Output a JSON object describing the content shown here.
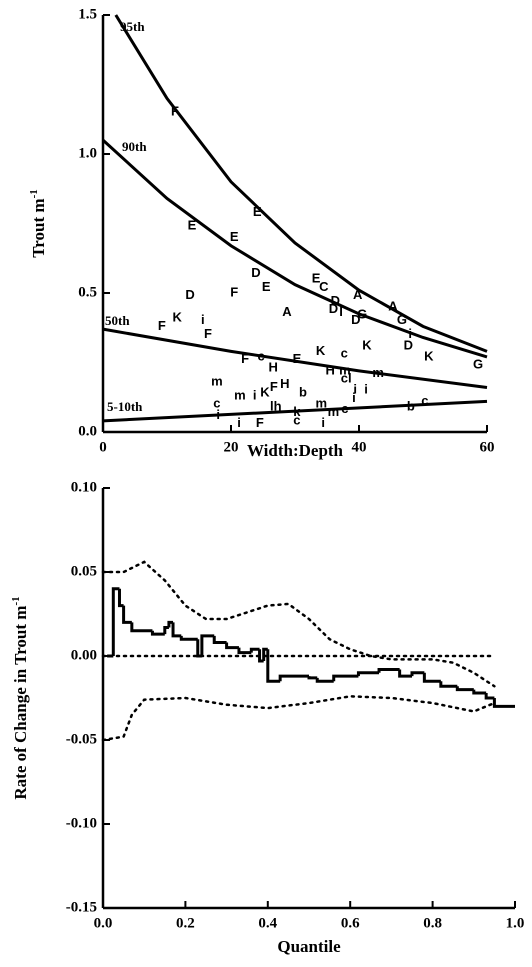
{
  "chart_data": [
    {
      "type": "scatter",
      "x_label": "Width:Depth",
      "y_label": "Trout  m",
      "y_label_sup": "-1",
      "xlim": [
        0,
        60
      ],
      "xticks": [
        0,
        20,
        40,
        60
      ],
      "ylim": [
        0,
        1.5
      ],
      "yticks": [
        {
          "value": 0,
          "label": "0.0"
        },
        {
          "value": 0.5,
          "label": "0.5"
        },
        {
          "value": 1,
          "label": "1.0"
        },
        {
          "value": 1.5,
          "label": "1.5"
        }
      ],
      "points": {
        "x": [
          11.25,
          24.1,
          13.9,
          20.5,
          23.9,
          20.5,
          25.5,
          13.6,
          11.6,
          9.2,
          15.6,
          16.4,
          28.75,
          33.3,
          34.5,
          36.3,
          36,
          37.2,
          40.5,
          39.5,
          39.8,
          45.3,
          46.7,
          48,
          47.7,
          58.6,
          41.25,
          34,
          37.7,
          22.2,
          24.7,
          26.6,
          30.3,
          35.5,
          37.8,
          43,
          38,
          39.4,
          41.1,
          50.9,
          17.8,
          17.8,
          18,
          21.4,
          23.7,
          25.3,
          28.4,
          26.7,
          31.25,
          27,
          34.1,
          30.3,
          30.3,
          36,
          37.8,
          39.2,
          24.5,
          21.25,
          48.1,
          50.3,
          34.4
        ],
        "y": [
          1.15,
          0.79,
          0.74,
          0.7,
          0.57,
          0.5,
          0.52,
          0.49,
          0.41,
          0.38,
          0.4,
          0.35,
          0.43,
          0.55,
          0.52,
          0.47,
          0.44,
          0.43,
          0.42,
          0.4,
          0.49,
          0.45,
          0.4,
          0.35,
          0.31,
          0.24,
          0.31,
          0.29,
          0.28,
          0.26,
          0.27,
          0.23,
          0.26,
          0.22,
          0.22,
          0.21,
          0.19,
          0.15,
          0.15,
          0.27,
          0.18,
          0.1,
          0.06,
          0.13,
          0.13,
          0.14,
          0.17,
          0.16,
          0.14,
          0.09,
          0.1,
          0.07,
          0.04,
          0.07,
          0.08,
          0.12,
          0.03,
          0.03,
          0.09,
          0.11,
          0.03
        ],
        "labels": [
          "F",
          "E",
          "E",
          "E",
          "D",
          "F",
          "E",
          "D",
          "K",
          "F",
          "i",
          "F",
          "A",
          "E",
          "C",
          "D",
          "D",
          "I",
          "G",
          "D",
          "A",
          "A",
          "G",
          "i",
          "D",
          "G",
          "K",
          "K",
          "c",
          "F",
          "c",
          "H",
          "E",
          "H",
          "m",
          "m",
          "cl",
          "i",
          "i",
          "K",
          "m",
          "c",
          "i",
          "m",
          "i",
          "K",
          "H",
          "F",
          "b",
          "lh",
          "m",
          "k",
          "c",
          "m",
          "c",
          "i",
          "F",
          "i",
          "b",
          "c",
          "i"
        ]
      },
      "series": [
        {
          "name": "95th",
          "color": "#000000",
          "x": [
            2,
            10,
            20,
            30,
            40,
            50,
            60
          ],
          "values": [
            1.5,
            1.2,
            0.9,
            0.68,
            0.51,
            0.38,
            0.29
          ]
        },
        {
          "name": "90th",
          "color": "#000000",
          "x": [
            0,
            10,
            20,
            30,
            40,
            50,
            60
          ],
          "values": [
            1.05,
            0.84,
            0.67,
            0.53,
            0.425,
            0.34,
            0.27
          ]
        },
        {
          "name": "50th",
          "color": "#000000",
          "x": [
            0,
            20,
            40,
            60
          ],
          "values": [
            0.37,
            0.29,
            0.22,
            0.16
          ]
        },
        {
          "name": "5-10th",
          "color": "#000000",
          "x": [
            0,
            60
          ],
          "values": [
            0.04,
            0.11
          ]
        }
      ]
    },
    {
      "type": "line",
      "x_label": "Quantile",
      "y_label": "Rate of Change in Trout m",
      "y_label_sup": "-1",
      "xlim": [
        0,
        1
      ],
      "xticks": [
        {
          "value": 0,
          "label": "0.0"
        },
        {
          "value": 0.2,
          "label": "0.2"
        },
        {
          "value": 0.4,
          "label": "0.4"
        },
        {
          "value": 0.6,
          "label": "0.6"
        },
        {
          "value": 0.8,
          "label": "0.8"
        },
        {
          "value": 1,
          "label": "1.0"
        }
      ],
      "ylim": [
        -0.15,
        0.1
      ],
      "yticks": [
        {
          "value": -0.15,
          "label": "-0.15"
        },
        {
          "value": -0.1,
          "label": "-0.10"
        },
        {
          "value": -0.05,
          "label": "-0.05"
        },
        {
          "value": 0,
          "label": "0.00"
        },
        {
          "value": 0.05,
          "label": "0.05"
        },
        {
          "value": 0.1,
          "label": "0.10"
        }
      ],
      "reference_line": {
        "y": 0,
        "x": [
          0,
          0.95
        ]
      },
      "series": [
        {
          "style": "step",
          "color": "#000000",
          "x": [
            0.01,
            0.025,
            0.04,
            0.05,
            0.07,
            0.12,
            0.15,
            0.16,
            0.17,
            0.19,
            0.23,
            0.24,
            0.27,
            0.3,
            0.33,
            0.36,
            0.38,
            0.39,
            0.4,
            0.43,
            0.5,
            0.52,
            0.56,
            0.62,
            0.67,
            0.72,
            0.75,
            0.78,
            0.82,
            0.86,
            0.9,
            0.93,
            0.95,
            1
          ],
          "values": [
            0,
            0.04,
            0.03,
            0.02,
            0.015,
            0.013,
            0.017,
            0.02,
            0.012,
            0.01,
            0,
            0.012,
            0.008,
            0.005,
            0.002,
            0.004,
            -0.003,
            0.004,
            -0.015,
            -0.012,
            -0.013,
            -0.015,
            -0.012,
            -0.01,
            -0.008,
            -0.012,
            -0.01,
            -0.015,
            -0.018,
            -0.02,
            -0.022,
            -0.025,
            -0.03,
            -0.03
          ]
        },
        {
          "style": "dotted",
          "color": "#000000",
          "x": [
            0,
            0.05,
            0.1,
            0.15,
            0.2,
            0.25,
            0.3,
            0.35,
            0.4,
            0.45,
            0.5,
            0.55,
            0.6,
            0.65,
            0.7,
            0.75,
            0.8,
            0.85,
            0.9,
            0.95
          ],
          "values": [
            0.05,
            0.05,
            0.056,
            0.045,
            0.03,
            0.022,
            0.022,
            0.026,
            0.03,
            0.031,
            0.022,
            0.01,
            0.004,
            0,
            -0.002,
            -0.002,
            -0.002,
            -0.004,
            -0.01,
            -0.018
          ]
        },
        {
          "style": "dotted",
          "color": "#000000",
          "x": [
            0,
            0.05,
            0.07,
            0.1,
            0.2,
            0.3,
            0.4,
            0.5,
            0.6,
            0.7,
            0.8,
            0.9,
            0.95
          ],
          "values": [
            -0.05,
            -0.048,
            -0.035,
            -0.026,
            -0.025,
            -0.029,
            -0.031,
            -0.028,
            -0.024,
            -0.025,
            -0.028,
            -0.033,
            -0.028
          ]
        }
      ]
    }
  ]
}
